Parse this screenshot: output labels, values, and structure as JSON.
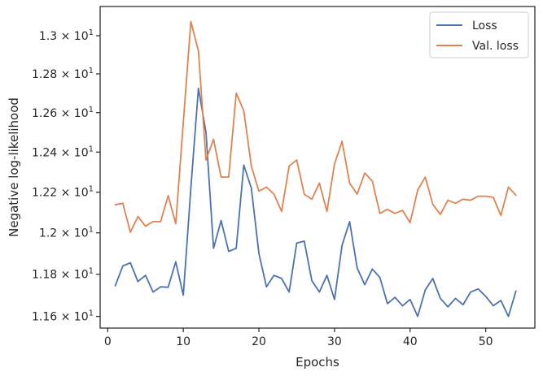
{
  "chart_data": {
    "type": "line",
    "xlabel": "Epochs",
    "ylabel": "Negative log-likelihood",
    "xlim": [
      -1,
      56.5
    ],
    "ylim": [
      11.545,
      13.155
    ],
    "yscale": "log",
    "grid": false,
    "legend_position": "top-right",
    "x_ticks": [
      0,
      10,
      20,
      30,
      40,
      50
    ],
    "x_tick_labels": [
      "0",
      "10",
      "20",
      "30",
      "40",
      "50"
    ],
    "y_ticks": [
      11.6,
      11.8,
      12.0,
      12.2,
      12.4,
      12.6,
      12.8,
      13.0
    ],
    "y_tick_labels": [
      {
        "mantissa": "1.16",
        "base": "10",
        "exp": "1"
      },
      {
        "mantissa": "1.18",
        "base": "10",
        "exp": "1"
      },
      {
        "mantissa": "1.2",
        "base": "10",
        "exp": "1"
      },
      {
        "mantissa": "1.22",
        "base": "10",
        "exp": "1"
      },
      {
        "mantissa": "1.24",
        "base": "10",
        "exp": "1"
      },
      {
        "mantissa": "1.26",
        "base": "10",
        "exp": "1"
      },
      {
        "mantissa": "1.28",
        "base": "10",
        "exp": "1"
      },
      {
        "mantissa": "1.3",
        "base": "10",
        "exp": "1"
      }
    ],
    "x": [
      1,
      2,
      3,
      4,
      5,
      6,
      7,
      8,
      9,
      10,
      11,
      12,
      13,
      14,
      15,
      16,
      17,
      18,
      19,
      20,
      21,
      22,
      23,
      24,
      25,
      26,
      27,
      28,
      29,
      30,
      31,
      32,
      33,
      34,
      35,
      36,
      37,
      38,
      39,
      40,
      41,
      42,
      43,
      44,
      45,
      46,
      47,
      48,
      49,
      50,
      51,
      52,
      53,
      54
    ],
    "series": [
      {
        "name": "Loss",
        "color": "#4c72b0",
        "values": [
          11.745,
          11.84,
          11.855,
          11.765,
          11.795,
          11.715,
          11.74,
          11.738,
          11.86,
          11.7,
          12.22,
          12.725,
          12.5,
          11.925,
          12.06,
          11.91,
          11.925,
          12.335,
          12.22,
          11.9,
          11.74,
          11.795,
          11.78,
          11.715,
          11.95,
          11.96,
          11.77,
          11.715,
          11.795,
          11.68,
          11.94,
          12.055,
          11.83,
          11.75,
          11.825,
          11.785,
          11.66,
          11.69,
          11.65,
          11.68,
          11.6,
          11.725,
          11.78,
          11.685,
          11.645,
          11.685,
          11.655,
          11.715,
          11.73,
          11.695,
          11.65,
          11.675,
          11.6,
          11.72
        ]
      },
      {
        "name": "Val. loss",
        "color": "#dd8452",
        "values": [
          12.138,
          12.145,
          12.003,
          12.08,
          12.033,
          12.055,
          12.055,
          12.183,
          12.045,
          12.55,
          13.075,
          12.92,
          12.36,
          12.465,
          12.275,
          12.275,
          12.7,
          12.61,
          12.33,
          12.205,
          12.225,
          12.19,
          12.105,
          12.33,
          12.36,
          12.19,
          12.165,
          12.245,
          12.105,
          12.34,
          12.455,
          12.245,
          12.19,
          12.295,
          12.255,
          12.095,
          12.115,
          12.095,
          12.11,
          12.05,
          12.21,
          12.275,
          12.14,
          12.09,
          12.16,
          12.145,
          12.165,
          12.16,
          12.18,
          12.18,
          12.175,
          12.085,
          12.225,
          12.185
        ]
      }
    ]
  }
}
